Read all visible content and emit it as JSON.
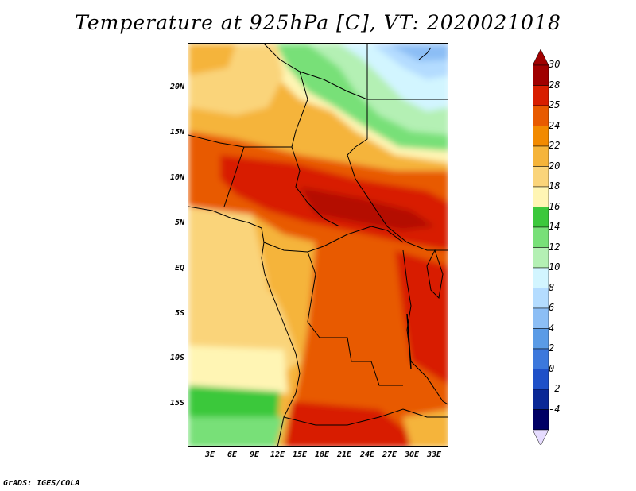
{
  "title": "Temperature at 925hPa [C], VT: 2020021018",
  "credit": "GrADS: IGES/COLA",
  "map": {
    "region": "Central Africa",
    "lat_range": [
      -20,
      24
    ],
    "lon_range": [
      0,
      35
    ],
    "y_ticks": [
      "20N",
      "15N",
      "10N",
      "5N",
      "EQ",
      "5S",
      "10S",
      "15S"
    ],
    "x_ticks": [
      "3E",
      "6E",
      "9E",
      "12E",
      "15E",
      "18E",
      "21E",
      "24E",
      "27E",
      "30E",
      "33E"
    ]
  },
  "colorbar": {
    "labels": [
      "30",
      "28",
      "25",
      "24",
      "22",
      "20",
      "18",
      "16",
      "14",
      "12",
      "10",
      "8",
      "6",
      "4",
      "2",
      "0",
      "-2",
      "-4"
    ],
    "colors": [
      "#a00000",
      "#d81e00",
      "#e85a00",
      "#f28a00",
      "#f5b43a",
      "#fad47a",
      "#fff5b4",
      "#3bc83b",
      "#78e078",
      "#b4f0b4",
      "#d2f5ff",
      "#b4dcff",
      "#8cbef5",
      "#5a9be6",
      "#3c78dc",
      "#1e50c8",
      "#0a2896",
      "#000064"
    ],
    "under_color": "#e6dcff"
  }
}
